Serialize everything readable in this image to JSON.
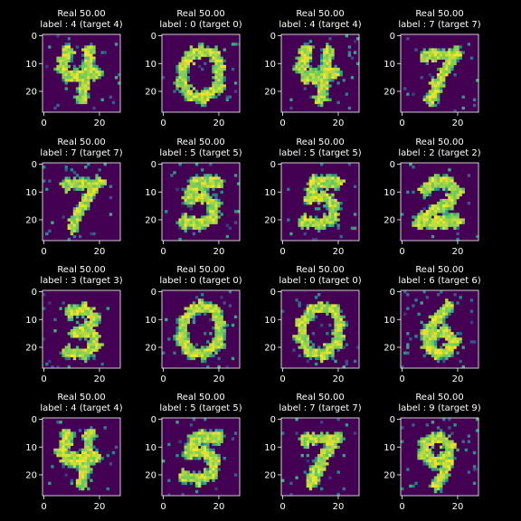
{
  "figure": {
    "background": "#000000",
    "text_color": "#ffffff",
    "colormap": "viridis"
  },
  "chart_data": [
    {
      "type": "heatmap",
      "title": "Real 50.00",
      "subtitle": "label : 4 (target 4)",
      "digit": 4,
      "label": 4,
      "target": 4,
      "score": "50.00",
      "xticks": [
        "0",
        "20"
      ],
      "yticks": [
        "0",
        "10",
        "20"
      ],
      "xlim": [
        0,
        27
      ],
      "ylim": [
        27,
        0
      ]
    },
    {
      "type": "heatmap",
      "title": "Real 50.00",
      "subtitle": "label : 0 (target 0)",
      "digit": 0,
      "label": 0,
      "target": 0,
      "score": "50.00",
      "xticks": [
        "0",
        "20"
      ],
      "yticks": [
        "0",
        "10",
        "20"
      ],
      "xlim": [
        0,
        27
      ],
      "ylim": [
        27,
        0
      ]
    },
    {
      "type": "heatmap",
      "title": "Real 50.00",
      "subtitle": "label : 4 (target 4)",
      "digit": 4,
      "label": 4,
      "target": 4,
      "score": "50.00",
      "xticks": [
        "0",
        "20"
      ],
      "yticks": [
        "0",
        "10",
        "20"
      ],
      "xlim": [
        0,
        27
      ],
      "ylim": [
        27,
        0
      ]
    },
    {
      "type": "heatmap",
      "title": "Real 50.00",
      "subtitle": "label : 7 (target 7)",
      "digit": 7,
      "label": 7,
      "target": 7,
      "score": "50.00",
      "xticks": [
        "0",
        "20"
      ],
      "yticks": [
        "0",
        "10",
        "20"
      ],
      "xlim": [
        0,
        27
      ],
      "ylim": [
        27,
        0
      ]
    },
    {
      "type": "heatmap",
      "title": "Real 50.00",
      "subtitle": "label : 7 (target 7)",
      "digit": 7,
      "label": 7,
      "target": 7,
      "score": "50.00",
      "xticks": [
        "0",
        "20"
      ],
      "yticks": [
        "0",
        "10",
        "20"
      ],
      "xlim": [
        0,
        27
      ],
      "ylim": [
        27,
        0
      ]
    },
    {
      "type": "heatmap",
      "title": "Real 50.00",
      "subtitle": "label : 5 (target 5)",
      "digit": 5,
      "label": 5,
      "target": 5,
      "score": "50.00",
      "xticks": [
        "0",
        "20"
      ],
      "yticks": [
        "0",
        "10",
        "20"
      ],
      "xlim": [
        0,
        27
      ],
      "ylim": [
        27,
        0
      ]
    },
    {
      "type": "heatmap",
      "title": "Real 50.00",
      "subtitle": "label : 5 (target 5)",
      "digit": 5,
      "label": 5,
      "target": 5,
      "score": "50.00",
      "xticks": [
        "0",
        "20"
      ],
      "yticks": [
        "0",
        "10",
        "20"
      ],
      "xlim": [
        0,
        27
      ],
      "ylim": [
        27,
        0
      ]
    },
    {
      "type": "heatmap",
      "title": "Real 50.00",
      "subtitle": "label : 2 (target 2)",
      "digit": 2,
      "label": 2,
      "target": 2,
      "score": "50.00",
      "xticks": [
        "0",
        "20"
      ],
      "yticks": [
        "0",
        "10",
        "20"
      ],
      "xlim": [
        0,
        27
      ],
      "ylim": [
        27,
        0
      ]
    },
    {
      "type": "heatmap",
      "title": "Real 50.00",
      "subtitle": "label : 3 (target 3)",
      "digit": 3,
      "label": 3,
      "target": 3,
      "score": "50.00",
      "xticks": [
        "0",
        "20"
      ],
      "yticks": [
        "0",
        "10",
        "20"
      ],
      "xlim": [
        0,
        27
      ],
      "ylim": [
        27,
        0
      ]
    },
    {
      "type": "heatmap",
      "title": "Real 50.00",
      "subtitle": "label : 0 (target 0)",
      "digit": 0,
      "label": 0,
      "target": 0,
      "score": "50.00",
      "xticks": [
        "0",
        "20"
      ],
      "yticks": [
        "0",
        "10",
        "20"
      ],
      "xlim": [
        0,
        27
      ],
      "ylim": [
        27,
        0
      ]
    },
    {
      "type": "heatmap",
      "title": "Real 50.00",
      "subtitle": "label : 0 (target 0)",
      "digit": 0,
      "label": 0,
      "target": 0,
      "score": "50.00",
      "xticks": [
        "0",
        "20"
      ],
      "yticks": [
        "0",
        "10",
        "20"
      ],
      "xlim": [
        0,
        27
      ],
      "ylim": [
        27,
        0
      ]
    },
    {
      "type": "heatmap",
      "title": "Real 50.00",
      "subtitle": "label : 6 (target 6)",
      "digit": 6,
      "label": 6,
      "target": 6,
      "score": "50.00",
      "xticks": [
        "0",
        "20"
      ],
      "yticks": [
        "0",
        "10",
        "20"
      ],
      "xlim": [
        0,
        27
      ],
      "ylim": [
        27,
        0
      ]
    },
    {
      "type": "heatmap",
      "title": "Real 50.00",
      "subtitle": "label : 4 (target 4)",
      "digit": 4,
      "label": 4,
      "target": 4,
      "score": "50.00",
      "xticks": [
        "0",
        "20"
      ],
      "yticks": [
        "0",
        "10",
        "20"
      ],
      "xlim": [
        0,
        27
      ],
      "ylim": [
        27,
        0
      ]
    },
    {
      "type": "heatmap",
      "title": "Real 50.00",
      "subtitle": "label : 5 (target 5)",
      "digit": 5,
      "label": 5,
      "target": 5,
      "score": "50.00",
      "xticks": [
        "0",
        "20"
      ],
      "yticks": [
        "0",
        "10",
        "20"
      ],
      "xlim": [
        0,
        27
      ],
      "ylim": [
        27,
        0
      ]
    },
    {
      "type": "heatmap",
      "title": "Real 50.00",
      "subtitle": "label : 7 (target 7)",
      "digit": 7,
      "label": 7,
      "target": 7,
      "score": "50.00",
      "xticks": [
        "0",
        "20"
      ],
      "yticks": [
        "0",
        "10",
        "20"
      ],
      "xlim": [
        0,
        27
      ],
      "ylim": [
        27,
        0
      ]
    },
    {
      "type": "heatmap",
      "title": "Real 50.00",
      "subtitle": "label : 9 (target 9)",
      "digit": 9,
      "label": 9,
      "target": 9,
      "score": "50.00",
      "xticks": [
        "0",
        "20"
      ],
      "yticks": [
        "0",
        "10",
        "20"
      ],
      "xlim": [
        0,
        27
      ],
      "ylim": [
        27,
        0
      ]
    }
  ]
}
